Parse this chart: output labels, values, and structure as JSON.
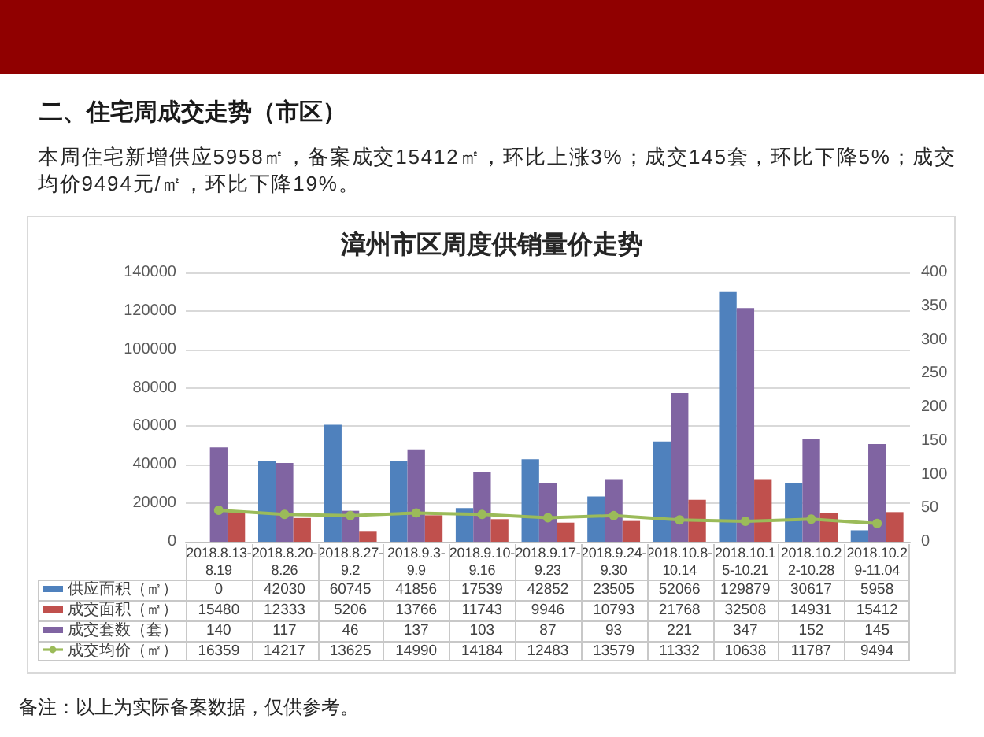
{
  "chart_data": {
    "type": "bar",
    "title": "漳州市区周度供销量价走势",
    "annotations": [
      "二、住宅周成交走势（市区）",
      "本周住宅新增供应5958㎡，备案成交15412㎡，环比上涨3%；成交145套，环比下降5%；成交均价9494元/㎡，环比下降19%。",
      "备注：以上为实际备案数据，仅供参考。"
    ],
    "categories": [
      "2018.8.13-8.19",
      "2018.8.20-8.26",
      "2018.8.27-9.2",
      "2018.9.3-9.9",
      "2018.9.10-9.16",
      "2018.9.17-9.23",
      "2018.9.24-9.30",
      "2018.10.8-10.14",
      "2018.10.15-10.21",
      "2018.10.22-10.28",
      "2018.10.29-11.04"
    ],
    "series": [
      {
        "name": "供应面积（㎡）",
        "color": "#4f81bd",
        "values": [
          0,
          42030,
          60745,
          41856,
          17539,
          42852,
          23505,
          52066,
          129879,
          30617,
          5958
        ]
      },
      {
        "name": "成交面积（㎡）",
        "color": "#c0504d",
        "values": [
          15480,
          12333,
          5206,
          13766,
          11743,
          9946,
          10793,
          21768,
          32508,
          14931,
          15412
        ]
      },
      {
        "name": "成交套数（套）",
        "color": "#8064a2",
        "axis": "y2",
        "values": [
          140,
          117,
          46,
          137,
          103,
          87,
          93,
          221,
          347,
          152,
          145
        ]
      },
      {
        "name": "成交均价（㎡）",
        "type": "line",
        "color": "#9bbb59",
        "values": [
          16359,
          14217,
          13625,
          14990,
          14184,
          12483,
          13579,
          11332,
          10638,
          11787,
          9494
        ]
      }
    ],
    "ylim": [
      0,
      140000
    ],
    "yticks": [
      0,
      20000,
      40000,
      60000,
      80000,
      100000,
      120000,
      140000
    ],
    "y2lim": [
      0,
      400
    ],
    "y2ticks": [
      0,
      50,
      100,
      150,
      200,
      250,
      300,
      350,
      400
    ],
    "grid": "y",
    "legend": "bottom",
    "marker": "circle",
    "data_labels": true
  }
}
